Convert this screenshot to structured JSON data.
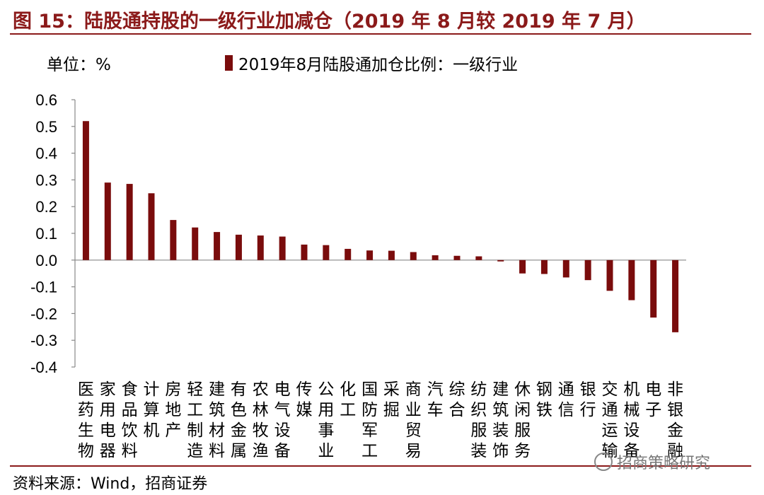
{
  "figure": {
    "title": "图 15：陆股通持股的一级行业加减仓（2019 年 8 月较 2019 年 7 月）",
    "unit": "单位：%",
    "source": "资料来源：Wind，招商证券",
    "watermark": "招商策略研究",
    "watermark_icon": "wechat-icon"
  },
  "colors": {
    "bar": "#7a0c0c",
    "title": "#8b1a1a",
    "rule": "#8b1a1a"
  },
  "chart_data": {
    "type": "bar",
    "categories": [
      "医药生物",
      "家用电器",
      "食品饮料",
      "计算机",
      "房地产",
      "轻工制造",
      "建筑材料",
      "有色金属",
      "农林牧渔",
      "电气设备",
      "传媒",
      "公用事业",
      "化工",
      "国防军工",
      "采掘",
      "商业贸易",
      "汽车",
      "综合",
      "纺织服装",
      "建筑装饰",
      "休闲服务",
      "钢铁",
      "通信",
      "银行",
      "交通运输",
      "机械设备",
      "电子",
      "非银金融"
    ],
    "series": [
      {
        "name": "2019年8月陆股通加仓比例：一级行业",
        "values": [
          0.52,
          0.29,
          0.285,
          0.25,
          0.15,
          0.122,
          0.105,
          0.095,
          0.092,
          0.088,
          0.058,
          0.056,
          0.042,
          0.036,
          0.035,
          0.03,
          0.018,
          0.016,
          0.014,
          -0.005,
          -0.05,
          -0.052,
          -0.065,
          -0.075,
          -0.115,
          -0.15,
          -0.215,
          -0.27
        ]
      }
    ],
    "ylim": [
      -0.4,
      0.6
    ],
    "yticks": [
      "0.6",
      "0.5",
      "0.4",
      "0.3",
      "0.2",
      "0.1",
      "0.0",
      "-0.1",
      "-0.2",
      "-0.3",
      "-0.4"
    ],
    "title": "",
    "xlabel": "",
    "ylabel": "",
    "grid": false,
    "legend_position": "top"
  }
}
